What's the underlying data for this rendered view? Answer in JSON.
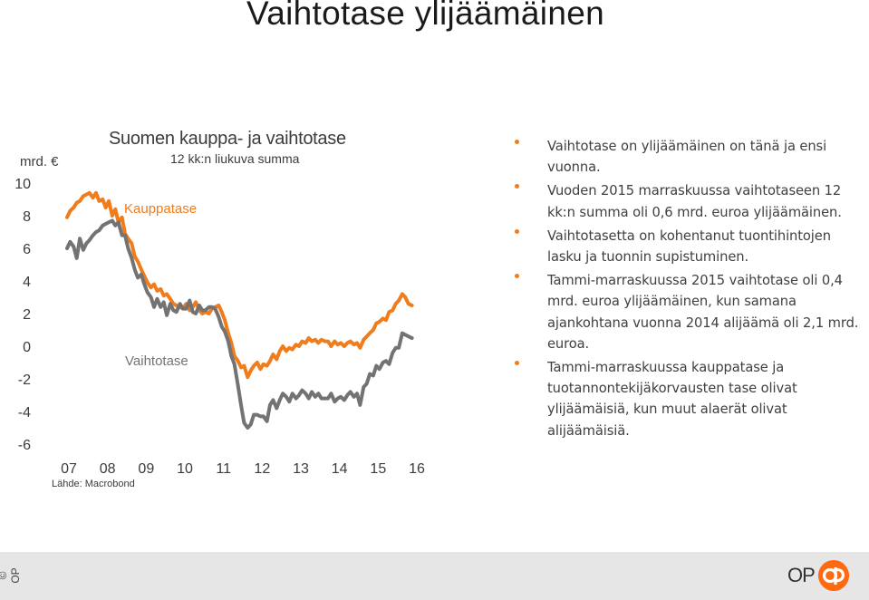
{
  "slide": {
    "title": "Vaihtotase ylijäämäinen",
    "copyright": "© OP",
    "logo_text": "OP"
  },
  "bullets": [
    "Vaihtotase on ylijäämäinen on tänä ja ensi vuonna.",
    "Vuoden 2015 marraskuussa vaihtotaseen 12 kk:n summa oli 0,6 mrd. euroa ylijäämäinen.",
    "Vaihtotasetta on kohentanut tuontihintojen lasku ja tuonnin supistuminen.",
    "Tammi-marraskuussa 2015 vaihtotase oli 0,4 mrd. euroa ylijäämäinen, kun samana ajankohtana vuonna 2014 alijäämä oli 2,1 mrd. euroa.",
    "Tammi-marraskuussa kauppatase ja tuotannontekijäkorvausten tase olivat ylijäämäisiä, kun muut alaerät olivat alijäämäisiä."
  ],
  "colors": {
    "kauppatase": "#f07c1c",
    "vaihtotase": "#737373",
    "bullet": "#f07c1c",
    "logo": "#ff6a10"
  },
  "chart_data": {
    "type": "line",
    "title": "Suomen kauppa- ja vaihtotase",
    "subtitle": "12 kk:n liukuva summa",
    "unit": "mrd. €",
    "source": "Lähde: Macrobond",
    "yticks": [
      "10",
      "8",
      "6",
      "4",
      "2",
      "0",
      "-2",
      "-4",
      "-6"
    ],
    "xticks": [
      "07",
      "08",
      "09",
      "10",
      "11",
      "12",
      "13",
      "14",
      "15",
      "16"
    ],
    "ylim": [
      -6,
      10
    ],
    "xlim": [
      2007,
      2016
    ],
    "grid": false,
    "series": [
      {
        "name": "Kauppatase",
        "color": "#f07c1c",
        "points": [
          [
            2007.0,
            7.9
          ],
          [
            2007.08,
            8.3
          ],
          [
            2007.17,
            8.5
          ],
          [
            2007.25,
            8.8
          ],
          [
            2007.33,
            8.9
          ],
          [
            2007.42,
            9.2
          ],
          [
            2007.5,
            9.3
          ],
          [
            2007.58,
            9.4
          ],
          [
            2007.67,
            9.1
          ],
          [
            2007.75,
            9.4
          ],
          [
            2007.83,
            8.9
          ],
          [
            2007.92,
            9.0
          ],
          [
            2008.0,
            8.5
          ],
          [
            2008.08,
            8.9
          ],
          [
            2008.17,
            8.0
          ],
          [
            2008.25,
            8.4
          ],
          [
            2008.33,
            7.6
          ],
          [
            2008.42,
            7.9
          ],
          [
            2008.5,
            6.9
          ],
          [
            2008.58,
            6.6
          ],
          [
            2008.67,
            6.3
          ],
          [
            2008.75,
            5.5
          ],
          [
            2008.83,
            5.2
          ],
          [
            2008.92,
            4.7
          ],
          [
            2009.0,
            4.3
          ],
          [
            2009.08,
            3.9
          ],
          [
            2009.17,
            3.6
          ],
          [
            2009.25,
            3.8
          ],
          [
            2009.33,
            3.4
          ],
          [
            2009.42,
            3.5
          ],
          [
            2009.5,
            3.1
          ],
          [
            2009.58,
            3.2
          ],
          [
            2009.67,
            2.9
          ],
          [
            2009.75,
            2.6
          ],
          [
            2009.83,
            2.5
          ],
          [
            2009.92,
            2.4
          ],
          [
            2010.0,
            2.3
          ],
          [
            2010.08,
            2.6
          ],
          [
            2010.17,
            2.2
          ],
          [
            2010.25,
            2.4
          ],
          [
            2010.33,
            2.7
          ],
          [
            2010.42,
            2.2
          ],
          [
            2010.5,
            2.0
          ],
          [
            2010.58,
            2.1
          ],
          [
            2010.67,
            2.0
          ],
          [
            2010.75,
            2.3
          ],
          [
            2010.83,
            2.4
          ],
          [
            2010.92,
            2.5
          ],
          [
            2011.0,
            2.1
          ],
          [
            2011.08,
            1.6
          ],
          [
            2011.17,
            0.8
          ],
          [
            2011.25,
            0.2
          ],
          [
            2011.33,
            -0.6
          ],
          [
            2011.42,
            -0.9
          ],
          [
            2011.5,
            -1.3
          ],
          [
            2011.58,
            -1.2
          ],
          [
            2011.67,
            -1.9
          ],
          [
            2011.75,
            -1.5
          ],
          [
            2011.83,
            -1.2
          ],
          [
            2011.92,
            -1.0
          ],
          [
            2012.0,
            -1.4
          ],
          [
            2012.08,
            -1.1
          ],
          [
            2012.17,
            -1.2
          ],
          [
            2012.25,
            -0.9
          ],
          [
            2012.33,
            -0.5
          ],
          [
            2012.42,
            -0.8
          ],
          [
            2012.5,
            -0.3
          ],
          [
            2012.58,
            0.0
          ],
          [
            2012.67,
            -0.3
          ],
          [
            2012.75,
            -0.1
          ],
          [
            2012.83,
            -0.2
          ],
          [
            2012.92,
            0.1
          ],
          [
            2013.0,
            0.0
          ],
          [
            2013.08,
            0.3
          ],
          [
            2013.17,
            0.2
          ],
          [
            2013.25,
            0.5
          ],
          [
            2013.33,
            0.3
          ],
          [
            2013.42,
            0.4
          ],
          [
            2013.5,
            0.2
          ],
          [
            2013.58,
            0.4
          ],
          [
            2013.67,
            0.3
          ],
          [
            2013.75,
            0.3
          ],
          [
            2013.83,
            0.0
          ],
          [
            2013.92,
            0.3
          ],
          [
            2014.0,
            0.1
          ],
          [
            2014.08,
            0.2
          ],
          [
            2014.17,
            0.0
          ],
          [
            2014.25,
            0.2
          ],
          [
            2014.33,
            0.3
          ],
          [
            2014.42,
            0.1
          ],
          [
            2014.5,
            0.2
          ],
          [
            2014.58,
            -0.1
          ],
          [
            2014.67,
            0.4
          ],
          [
            2014.75,
            0.6
          ],
          [
            2014.83,
            0.8
          ],
          [
            2014.92,
            1.0
          ],
          [
            2015.0,
            1.4
          ],
          [
            2015.08,
            1.5
          ],
          [
            2015.17,
            1.7
          ],
          [
            2015.25,
            1.6
          ],
          [
            2015.33,
            2.1
          ],
          [
            2015.42,
            2.2
          ],
          [
            2015.5,
            2.6
          ],
          [
            2015.58,
            2.8
          ],
          [
            2015.67,
            3.2
          ],
          [
            2015.75,
            3.0
          ],
          [
            2015.83,
            2.6
          ],
          [
            2015.92,
            2.5
          ]
        ]
      },
      {
        "name": "Vaihtotase",
        "color": "#737373",
        "points": [
          [
            2007.0,
            6.0
          ],
          [
            2007.08,
            6.4
          ],
          [
            2007.17,
            6.1
          ],
          [
            2007.25,
            5.4
          ],
          [
            2007.33,
            6.6
          ],
          [
            2007.42,
            5.9
          ],
          [
            2007.5,
            6.3
          ],
          [
            2007.58,
            6.5
          ],
          [
            2007.67,
            6.8
          ],
          [
            2007.75,
            7.0
          ],
          [
            2007.83,
            7.1
          ],
          [
            2007.92,
            7.4
          ],
          [
            2008.0,
            7.5
          ],
          [
            2008.08,
            7.6
          ],
          [
            2008.17,
            7.7
          ],
          [
            2008.25,
            7.4
          ],
          [
            2008.33,
            7.6
          ],
          [
            2008.42,
            6.8
          ],
          [
            2008.5,
            6.8
          ],
          [
            2008.58,
            6.0
          ],
          [
            2008.67,
            5.4
          ],
          [
            2008.75,
            4.7
          ],
          [
            2008.83,
            4.2
          ],
          [
            2008.92,
            4.4
          ],
          [
            2009.0,
            3.8
          ],
          [
            2009.08,
            3.3
          ],
          [
            2009.17,
            3.0
          ],
          [
            2009.25,
            2.4
          ],
          [
            2009.33,
            2.9
          ],
          [
            2009.42,
            2.4
          ],
          [
            2009.5,
            2.7
          ],
          [
            2009.58,
            1.9
          ],
          [
            2009.67,
            2.6
          ],
          [
            2009.75,
            2.2
          ],
          [
            2009.83,
            2.1
          ],
          [
            2009.92,
            2.6
          ],
          [
            2010.0,
            2.3
          ],
          [
            2010.08,
            2.3
          ],
          [
            2010.17,
            2.8
          ],
          [
            2010.25,
            2.1
          ],
          [
            2010.33,
            2.0
          ],
          [
            2010.42,
            2.5
          ],
          [
            2010.5,
            2.2
          ],
          [
            2010.58,
            2.2
          ],
          [
            2010.67,
            2.4
          ],
          [
            2010.75,
            2.4
          ],
          [
            2010.83,
            2.3
          ],
          [
            2010.92,
            1.8
          ],
          [
            2011.0,
            1.2
          ],
          [
            2011.08,
            0.9
          ],
          [
            2011.17,
            0.3
          ],
          [
            2011.25,
            -0.6
          ],
          [
            2011.33,
            -1.1
          ],
          [
            2011.42,
            -2.4
          ],
          [
            2011.5,
            -3.6
          ],
          [
            2011.58,
            -4.7
          ],
          [
            2011.67,
            -5.0
          ],
          [
            2011.75,
            -4.8
          ],
          [
            2011.83,
            -4.2
          ],
          [
            2011.92,
            -4.2
          ],
          [
            2012.0,
            -4.3
          ],
          [
            2012.08,
            -4.3
          ],
          [
            2012.17,
            -4.6
          ],
          [
            2012.25,
            -3.6
          ],
          [
            2012.33,
            -3.3
          ],
          [
            2012.42,
            -3.8
          ],
          [
            2012.5,
            -3.3
          ],
          [
            2012.58,
            -2.9
          ],
          [
            2012.67,
            -3.1
          ],
          [
            2012.75,
            -3.4
          ],
          [
            2012.83,
            -2.9
          ],
          [
            2012.92,
            -3.2
          ],
          [
            2013.0,
            -3.0
          ],
          [
            2013.08,
            -2.7
          ],
          [
            2013.17,
            -2.9
          ],
          [
            2013.25,
            -3.2
          ],
          [
            2013.33,
            -2.8
          ],
          [
            2013.42,
            -3.1
          ],
          [
            2013.5,
            -2.9
          ],
          [
            2013.58,
            -3.2
          ],
          [
            2013.67,
            -3.2
          ],
          [
            2013.75,
            -3.2
          ],
          [
            2013.83,
            -2.9
          ],
          [
            2013.92,
            -3.4
          ],
          [
            2014.0,
            -3.2
          ],
          [
            2014.08,
            -3.1
          ],
          [
            2014.17,
            -3.3
          ],
          [
            2014.25,
            -3.0
          ],
          [
            2014.33,
            -2.8
          ],
          [
            2014.42,
            -3.1
          ],
          [
            2014.5,
            -2.9
          ],
          [
            2014.58,
            -3.6
          ],
          [
            2014.67,
            -2.5
          ],
          [
            2014.75,
            -2.3
          ],
          [
            2014.83,
            -1.7
          ],
          [
            2014.92,
            -1.8
          ],
          [
            2015.0,
            -1.2
          ],
          [
            2015.08,
            -1.4
          ],
          [
            2015.17,
            -1.0
          ],
          [
            2015.25,
            -0.9
          ],
          [
            2015.33,
            -1.1
          ],
          [
            2015.42,
            -0.4
          ],
          [
            2015.5,
            -0.1
          ],
          [
            2015.58,
            -0.1
          ],
          [
            2015.67,
            0.8
          ],
          [
            2015.75,
            0.7
          ],
          [
            2015.83,
            0.6
          ],
          [
            2015.92,
            0.5
          ]
        ]
      }
    ],
    "annotations": [
      {
        "text": "Kauppatase",
        "series": "Kauppatase"
      },
      {
        "text": "Vaihtotase",
        "series": "Vaihtotase"
      }
    ]
  }
}
